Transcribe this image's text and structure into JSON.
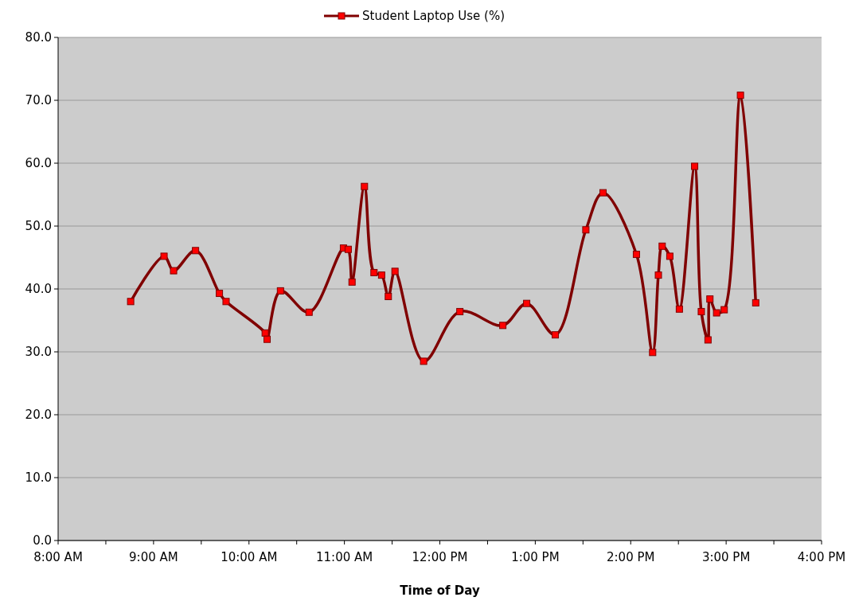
{
  "chart_data": {
    "type": "line",
    "xlabel": "Time of Day",
    "x": [
      8.76,
      9.11,
      9.21,
      9.44,
      9.69,
      9.76,
      10.17,
      10.19,
      10.33,
      10.63,
      10.99,
      11.04,
      11.08,
      11.21,
      11.31,
      11.39,
      11.46,
      11.53,
      11.83,
      12.21,
      12.66,
      12.91,
      13.21,
      13.53,
      13.71,
      14.06,
      14.23,
      14.29,
      14.33,
      14.41,
      14.51,
      14.67,
      14.74,
      14.81,
      14.83,
      14.9,
      14.98,
      15.15,
      15.31
    ],
    "series": [
      {
        "name": "Student Laptop Use (%)",
        "color": "#800000",
        "values": [
          38.0,
          45.2,
          42.9,
          46.1,
          39.3,
          38.0,
          33.0,
          32.0,
          39.7,
          36.3,
          46.5,
          46.3,
          41.1,
          56.3,
          42.6,
          42.2,
          38.8,
          42.8,
          28.5,
          36.4,
          34.2,
          37.7,
          32.7,
          49.4,
          55.3,
          45.5,
          29.9,
          42.2,
          46.8,
          45.2,
          36.8,
          59.5,
          36.4,
          31.9,
          38.4,
          36.2,
          36.7,
          70.8,
          37.8
        ]
      }
    ],
    "xlim": [
      8,
      16
    ],
    "xticks": [
      {
        "value": 8,
        "label": "8:00 AM"
      },
      {
        "value": 8.5,
        "label": null
      },
      {
        "value": 9,
        "label": "9:00 AM"
      },
      {
        "value": 9.5,
        "label": null
      },
      {
        "value": 10,
        "label": "10:00 AM"
      },
      {
        "value": 10.5,
        "label": null
      },
      {
        "value": 11,
        "label": "11:00 AM"
      },
      {
        "value": 11.5,
        "label": null
      },
      {
        "value": 12,
        "label": "12:00 PM"
      },
      {
        "value": 12.5,
        "label": null
      },
      {
        "value": 13,
        "label": "1:00 PM"
      },
      {
        "value": 13.5,
        "label": null
      },
      {
        "value": 14,
        "label": "2:00 PM"
      },
      {
        "value": 14.5,
        "label": null
      },
      {
        "value": 15,
        "label": "3:00 PM"
      },
      {
        "value": 15.5,
        "label": null
      },
      {
        "value": 16,
        "label": "4:00 PM"
      }
    ],
    "ylim": [
      0,
      80
    ],
    "yticks": [
      {
        "value": 0,
        "label": "0.0"
      },
      {
        "value": 10,
        "label": "10.0"
      },
      {
        "value": 20,
        "label": "20.0"
      },
      {
        "value": 30,
        "label": "30.0"
      },
      {
        "value": 40,
        "label": "40.0"
      },
      {
        "value": 50,
        "label": "50.0"
      },
      {
        "value": 60,
        "label": "60.0"
      },
      {
        "value": 70,
        "label": "70.0"
      },
      {
        "value": 80,
        "label": "80.0"
      }
    ],
    "grid": "y",
    "legend": "top",
    "marker": "square",
    "line_style": "solid"
  }
}
